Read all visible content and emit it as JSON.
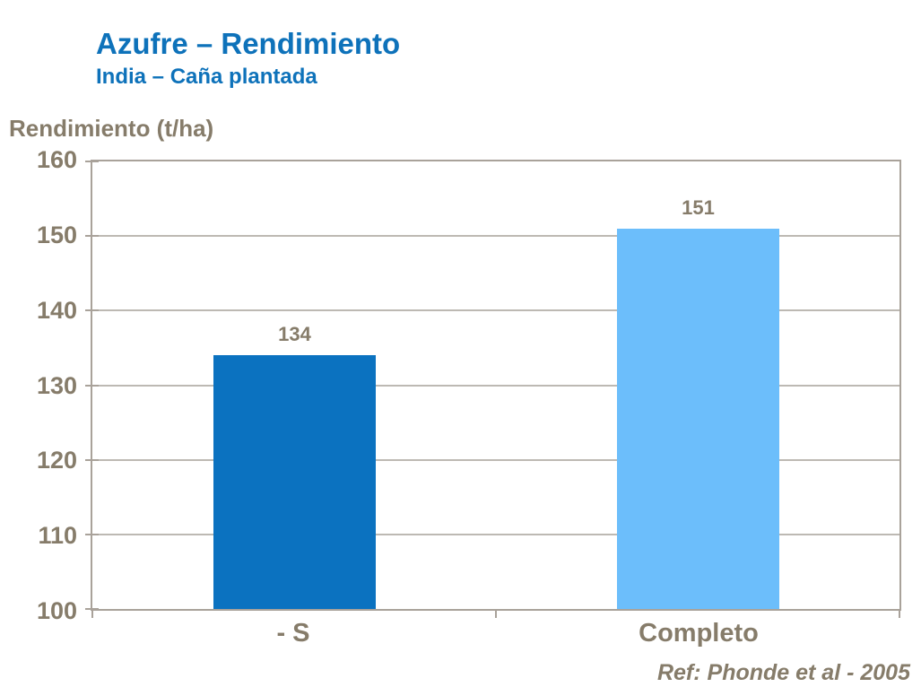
{
  "header": {
    "title": "Azufre – Rendimiento",
    "subtitle": "India – Caña plantada"
  },
  "footer": {
    "reference": "Ref: Phonde et al - 2005"
  },
  "chart_data": {
    "type": "bar",
    "title": "Azufre – Rendimiento",
    "subtitle": "India – Caña plantada",
    "categories": [
      "- S",
      "Completo"
    ],
    "values": [
      134,
      151
    ],
    "bar_value_labels": [
      "134",
      "151"
    ],
    "xlabel": "",
    "ylabel": "Rendimiento (t/ha)",
    "ylim": [
      100,
      160
    ],
    "ytick_step": 10,
    "ytick_labels": [
      "100",
      "110",
      "120",
      "130",
      "140",
      "150",
      "160"
    ],
    "grid": true,
    "legend": "none",
    "bar_colors": [
      "#0B72C0",
      "#6CBEFB"
    ],
    "annotation": "Ref: Phonde et al - 2005"
  },
  "colors": {
    "title_blue": "#0E72BA",
    "text_brown": "#867C6A",
    "axis_gray": "#A9A29A",
    "gridline_gray": "#BDB9B3",
    "bar_dark_blue": "#0B72C0",
    "bar_light_blue": "#6CBEFB",
    "background": "#FFFFFF"
  }
}
